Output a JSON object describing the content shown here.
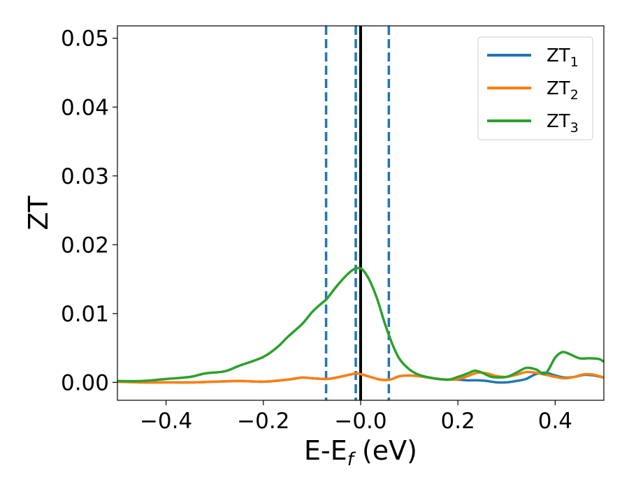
{
  "chart_data": {
    "type": "line",
    "title": "",
    "xlabel": "E-E",
    "xlabel_sub": "f",
    "xlabel_unit": " (eV)",
    "ylabel": "ZT",
    "xlim": [
      -0.5,
      0.5
    ],
    "ylim": [
      -0.0026,
      0.0518
    ],
    "xticks": [
      -0.4,
      -0.2,
      0.0,
      0.2,
      0.4
    ],
    "xtick_labels": [
      "−0.4",
      "−0.2",
      "−0.0",
      "0.2",
      "0.4"
    ],
    "yticks": [
      0.0,
      0.01,
      0.02,
      0.03,
      0.04,
      0.05
    ],
    "ytick_labels": [
      "0.00",
      "0.01",
      "0.02",
      "0.03",
      "0.04",
      "0.05"
    ],
    "grid": false,
    "legend_position": "top-right",
    "vlines": [
      {
        "x": -0.071,
        "style": "dashed",
        "color": "#1f77b4"
      },
      {
        "x": -0.01,
        "style": "dashed",
        "color": "#1f77b4"
      },
      {
        "x": 0.058,
        "style": "dashed",
        "color": "#1f77b4"
      },
      {
        "x": 0.0,
        "style": "solid",
        "color": "#000000"
      }
    ],
    "series": [
      {
        "name": "ZT",
        "sub": "1",
        "color": "#1f77b4",
        "x": [
          -0.5,
          -0.45,
          -0.4,
          -0.35,
          -0.3,
          -0.25,
          -0.2,
          -0.15,
          -0.12,
          -0.1,
          -0.07,
          -0.05,
          -0.03,
          -0.01,
          0.0,
          0.02,
          0.04,
          0.06,
          0.08,
          0.1,
          0.12,
          0.14,
          0.16,
          0.18,
          0.2,
          0.22,
          0.24,
          0.26,
          0.28,
          0.3,
          0.32,
          0.34,
          0.36,
          0.38,
          0.4,
          0.42,
          0.44,
          0.46,
          0.48,
          0.5
        ],
        "y": [
          0.0001,
          0.0,
          0.0,
          0.0,
          0.0001,
          0.0002,
          0.0001,
          0.0004,
          0.0007,
          0.0006,
          0.0005,
          0.0007,
          0.001,
          0.0013,
          0.0012,
          0.0008,
          0.0004,
          0.0004,
          0.0009,
          0.001,
          0.0009,
          0.0007,
          0.0005,
          0.0004,
          0.0004,
          0.0003,
          0.0003,
          0.0002,
          0.0,
          0.0,
          0.0002,
          0.0005,
          0.0012,
          0.0014,
          0.001,
          0.0007,
          0.0008,
          0.0011,
          0.001,
          0.0007
        ]
      },
      {
        "name": "ZT",
        "sub": "2",
        "color": "#ff7f0e",
        "x": [
          -0.5,
          -0.45,
          -0.4,
          -0.35,
          -0.3,
          -0.25,
          -0.2,
          -0.15,
          -0.12,
          -0.1,
          -0.07,
          -0.05,
          -0.03,
          -0.01,
          0.0,
          0.02,
          0.04,
          0.06,
          0.08,
          0.1,
          0.12,
          0.14,
          0.16,
          0.18,
          0.2,
          0.22,
          0.24,
          0.26,
          0.28,
          0.3,
          0.32,
          0.34,
          0.36,
          0.38,
          0.4,
          0.42,
          0.44,
          0.46,
          0.48,
          0.5
        ],
        "y": [
          0.0001,
          0.0,
          0.0,
          0.0,
          0.0001,
          0.0002,
          0.0001,
          0.0004,
          0.0007,
          0.0006,
          0.0005,
          0.0007,
          0.001,
          0.0013,
          0.0012,
          0.0008,
          0.0004,
          0.0004,
          0.0009,
          0.001,
          0.0009,
          0.0007,
          0.0005,
          0.0004,
          0.0005,
          0.0009,
          0.0014,
          0.0013,
          0.0009,
          0.0008,
          0.0011,
          0.0015,
          0.0014,
          0.0011,
          0.0008,
          0.0006,
          0.0008,
          0.0012,
          0.0011,
          0.0007
        ]
      },
      {
        "name": "ZT",
        "sub": "3",
        "color": "#2ca02c",
        "x": [
          -0.5,
          -0.45,
          -0.4,
          -0.35,
          -0.32,
          -0.28,
          -0.25,
          -0.2,
          -0.17,
          -0.15,
          -0.12,
          -0.1,
          -0.08,
          -0.07,
          -0.05,
          -0.03,
          -0.015,
          -0.005,
          0.005,
          0.02,
          0.035,
          0.05,
          0.065,
          0.08,
          0.1,
          0.12,
          0.15,
          0.18,
          0.2,
          0.22,
          0.235,
          0.25,
          0.27,
          0.3,
          0.32,
          0.34,
          0.36,
          0.38,
          0.4,
          0.415,
          0.43,
          0.45,
          0.47,
          0.49,
          0.5
        ],
        "y": [
          0.0002,
          0.0002,
          0.0005,
          0.0008,
          0.0013,
          0.0016,
          0.0024,
          0.0037,
          0.0052,
          0.0066,
          0.0085,
          0.0102,
          0.0115,
          0.0121,
          0.0139,
          0.0155,
          0.0164,
          0.0166,
          0.0163,
          0.0146,
          0.0119,
          0.0085,
          0.0056,
          0.0034,
          0.0019,
          0.0011,
          0.0006,
          0.0004,
          0.0008,
          0.0013,
          0.0017,
          0.0014,
          0.0008,
          0.0008,
          0.0014,
          0.0021,
          0.0019,
          0.0013,
          0.0036,
          0.0044,
          0.0041,
          0.0035,
          0.0035,
          0.0034,
          0.003
        ]
      }
    ]
  }
}
